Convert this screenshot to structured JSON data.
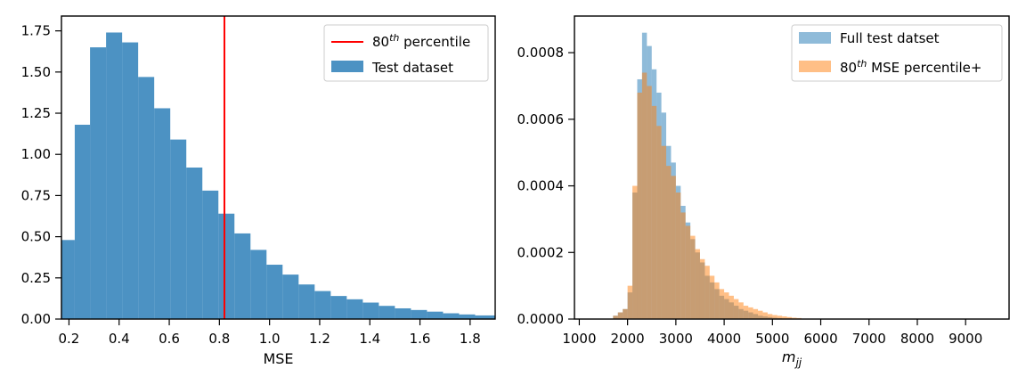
{
  "chart_data": [
    {
      "type": "bar",
      "subtype": "histogram",
      "xlabel": "MSE",
      "ylabel": "",
      "xlim": [
        0.17,
        1.9
      ],
      "ylim": [
        0,
        1.84
      ],
      "xticks": [
        0.2,
        0.4,
        0.6,
        0.8,
        1.0,
        1.2,
        1.4,
        1.6,
        1.8
      ],
      "xtick_labels": [
        "0.2",
        "0.4",
        "0.6",
        "0.8",
        "1.0",
        "1.2",
        "1.4",
        "1.6",
        "1.8"
      ],
      "yticks": [
        0,
        0.25,
        0.5,
        0.75,
        1.0,
        1.25,
        1.5,
        1.75
      ],
      "ytick_labels": [
        "0.00",
        "0.25",
        "0.50",
        "0.75",
        "1.00",
        "1.25",
        "1.50",
        "1.75"
      ],
      "grid": false,
      "legend_position": "top-right",
      "vline": {
        "x": 0.82,
        "color": "#ff0000"
      },
      "series": [
        {
          "name": "Test dataset",
          "color": "#1f77b4",
          "alpha": 0.8,
          "bin_edges": [
            0.17,
            0.223,
            0.284,
            0.348,
            0.412,
            0.476,
            0.54,
            0.604,
            0.668,
            0.732,
            0.796,
            0.86,
            0.924,
            0.988,
            1.052,
            1.116,
            1.18,
            1.244,
            1.308,
            1.372,
            1.436,
            1.5,
            1.564,
            1.628,
            1.692,
            1.756,
            1.82,
            1.9
          ],
          "values": [
            0.48,
            1.18,
            1.65,
            1.74,
            1.68,
            1.47,
            1.28,
            1.09,
            0.92,
            0.78,
            0.64,
            0.52,
            0.42,
            0.33,
            0.27,
            0.21,
            0.17,
            0.14,
            0.12,
            0.1,
            0.08,
            0.065,
            0.055,
            0.045,
            0.035,
            0.028,
            0.022
          ]
        }
      ],
      "legend": [
        {
          "label_main": "80",
          "label_sup": "th",
          "label_rest": " percentile",
          "kind": "line"
        },
        {
          "label_main": "Test dataset",
          "kind": "patch"
        }
      ]
    },
    {
      "type": "bar",
      "subtype": "histogram",
      "xlabel": "m",
      "xlabel_sub": "jj",
      "ylabel": "",
      "xlim": [
        900,
        9900
      ],
      "ylim": [
        0,
        0.00091
      ],
      "xticks": [
        1000,
        2000,
        3000,
        4000,
        5000,
        6000,
        7000,
        8000,
        9000
      ],
      "xtick_labels": [
        "1000",
        "2000",
        "3000",
        "4000",
        "5000",
        "6000",
        "7000",
        "8000",
        "9000"
      ],
      "yticks": [
        0,
        0.0002,
        0.0004,
        0.0006,
        0.0008
      ],
      "ytick_labels": [
        "0.0000",
        "0.0002",
        "0.0004",
        "0.0006",
        "0.0008"
      ],
      "grid": false,
      "legend_position": "top-right",
      "bin_start": 1700,
      "bin_width": 100,
      "series": [
        {
          "name": "Full test datset",
          "color": "#1f77b4",
          "alpha": 0.5,
          "values": [
            1e-05,
            2e-05,
            3e-05,
            8e-05,
            0.00038,
            0.00072,
            0.00086,
            0.00082,
            0.00075,
            0.00068,
            0.00062,
            0.00052,
            0.00047,
            0.0004,
            0.00034,
            0.00029,
            0.00024,
            0.0002,
            0.00017,
            0.00013,
            0.00011,
            9e-05,
            7e-05,
            6e-05,
            5e-05,
            4e-05,
            3e-05,
            2.5e-05,
            2e-05,
            1.5e-05,
            1e-05,
            8e-06,
            6e-06,
            4e-06,
            3e-06,
            2e-06,
            2e-06,
            1e-06,
            1e-06
          ]
        },
        {
          "name": "80th MSE percentile+",
          "color": "#ff7f0e",
          "alpha": 0.5,
          "values": [
            1e-05,
            2e-05,
            3e-05,
            0.0001,
            0.0004,
            0.00068,
            0.00074,
            0.0007,
            0.00064,
            0.00058,
            0.00052,
            0.00046,
            0.00043,
            0.00038,
            0.00032,
            0.00028,
            0.00025,
            0.00021,
            0.00018,
            0.00016,
            0.00013,
            0.00011,
            9e-05,
            8e-05,
            7e-05,
            6e-05,
            5e-05,
            4e-05,
            3.5e-05,
            3e-05,
            2.5e-05,
            2e-05,
            1.5e-05,
            1.2e-05,
            1e-05,
            8e-06,
            6e-06,
            4e-06,
            3e-06
          ]
        }
      ],
      "legend": [
        {
          "label_main": "Full test datset",
          "kind": "patch"
        },
        {
          "label_main": "80",
          "label_sup": "th",
          "label_rest": " MSE percentile+",
          "kind": "patch"
        }
      ]
    }
  ]
}
